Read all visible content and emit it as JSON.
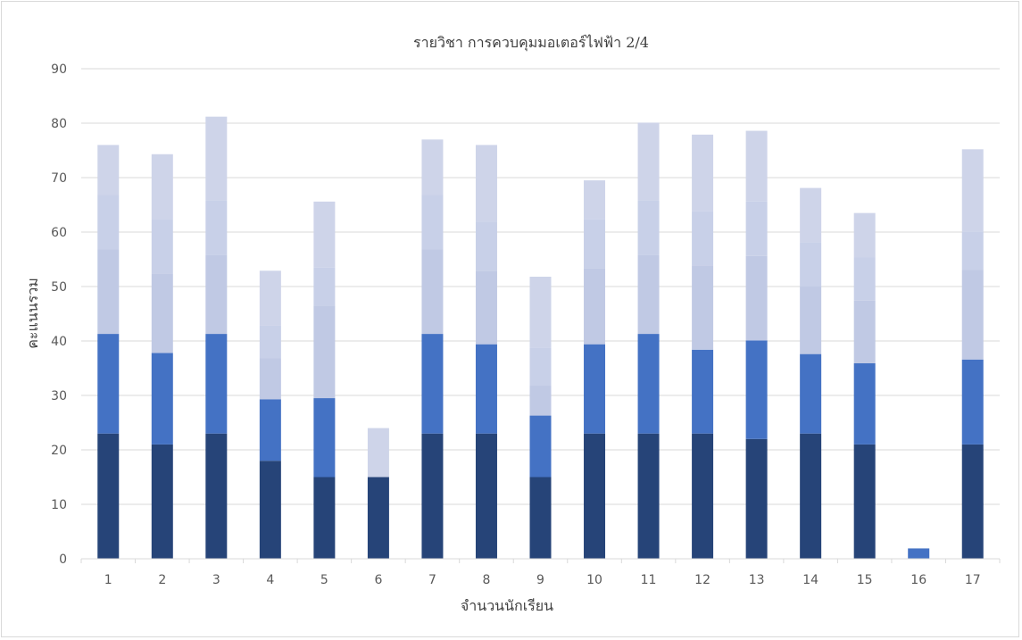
{
  "chart_data": {
    "type": "bar",
    "stacked": true,
    "title": "รายวิชา การควบคุมมอเตอร์ไฟฟ้า 2/4",
    "xlabel": "จำนวนนักเรียน",
    "ylabel": "คะแนนรวม",
    "ylim": [
      0,
      90
    ],
    "y_ticks": [
      0,
      10,
      20,
      30,
      40,
      50,
      60,
      70,
      80,
      90
    ],
    "grid": true,
    "legend": "none",
    "categories": [
      "1",
      "2",
      "3",
      "4",
      "5",
      "6",
      "7",
      "8",
      "9",
      "10",
      "11",
      "12",
      "13",
      "14",
      "15",
      "16",
      "17"
    ],
    "series": [
      {
        "color": "#264478",
        "values": [
          23,
          21,
          23,
          18,
          15,
          15,
          23,
          23,
          15,
          23,
          23,
          23,
          22,
          23,
          21,
          0,
          21
        ]
      },
      {
        "color": "#4472c4",
        "values": [
          18.3,
          16.8,
          18.3,
          11.3,
          14.5,
          0,
          18.3,
          16.4,
          11.3,
          16.4,
          18.3,
          15.4,
          18.1,
          14.6,
          14.9,
          1.9,
          15.6
        ]
      },
      {
        "color": "#c0c9e4",
        "values": [
          15.5,
          14.5,
          14.5,
          7.5,
          17,
          0,
          15.5,
          13.5,
          5.5,
          14,
          14.5,
          15.5,
          15.5,
          12.5,
          11.5,
          0,
          16.5
        ]
      },
      {
        "color": "#c8d0e8",
        "values": [
          10,
          10,
          10,
          6,
          7,
          0,
          10,
          9,
          7,
          9,
          10,
          10,
          10,
          8,
          8,
          0,
          7
        ]
      },
      {
        "color": "#ced4e9",
        "values": [
          9.2,
          12,
          15.4,
          10.1,
          12.1,
          9,
          10.2,
          14.1,
          13,
          7.1,
          14.3,
          14,
          13,
          10,
          8.1,
          0,
          15.1
        ]
      }
    ]
  }
}
